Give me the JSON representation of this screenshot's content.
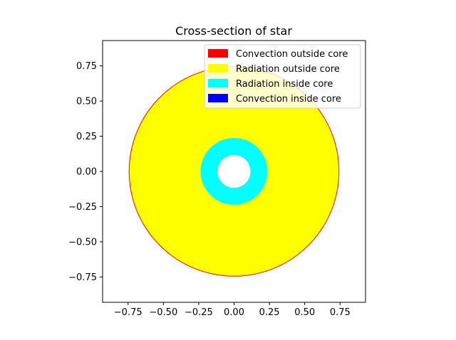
{
  "chart_data": {
    "type": "area",
    "title": "Cross-section of star",
    "xlabel": "",
    "ylabel": "",
    "xlim": [
      -0.93,
      0.93
    ],
    "ylim": [
      -0.93,
      0.93
    ],
    "grid": false,
    "legend_placement": "top-right",
    "x_ticks": [
      -0.75,
      -0.5,
      -0.25,
      0.0,
      0.25,
      0.5,
      0.75
    ],
    "x_tick_labels": [
      "−0.75",
      "−0.50",
      "−0.25",
      "0.00",
      "0.25",
      "0.50",
      "0.75"
    ],
    "y_ticks": [
      0.75,
      0.5,
      0.25,
      0.0,
      -0.25,
      -0.5,
      -0.75
    ],
    "y_tick_labels": [
      "0.75",
      "0.50",
      "0.25",
      "0.00",
      "−0.25",
      "−0.50",
      "−0.75"
    ],
    "regions": [
      {
        "name": "Convection outside core",
        "outer_radius": 0.745,
        "inner_radius": 0.74,
        "color": "#ff0000"
      },
      {
        "name": "Radiation outside core",
        "outer_radius": 0.74,
        "inner_radius": 0.237,
        "color": "#ffff00"
      },
      {
        "name": "Radiation inside core",
        "outer_radius": 0.237,
        "inner_radius": 0.117,
        "color": "#00ffff"
      },
      {
        "name": "Convection inside core",
        "outer_radius": 0.117,
        "inner_radius": 0.117,
        "color": "#0000ff"
      }
    ],
    "legend": [
      {
        "label": "Convection outside core",
        "color": "#ff0000"
      },
      {
        "label": "Radiation outside core",
        "color": "#ffff00"
      },
      {
        "label": "Radiation inside core",
        "color": "#00ffff"
      },
      {
        "label": "Convection inside core",
        "color": "#0000ff"
      }
    ]
  }
}
